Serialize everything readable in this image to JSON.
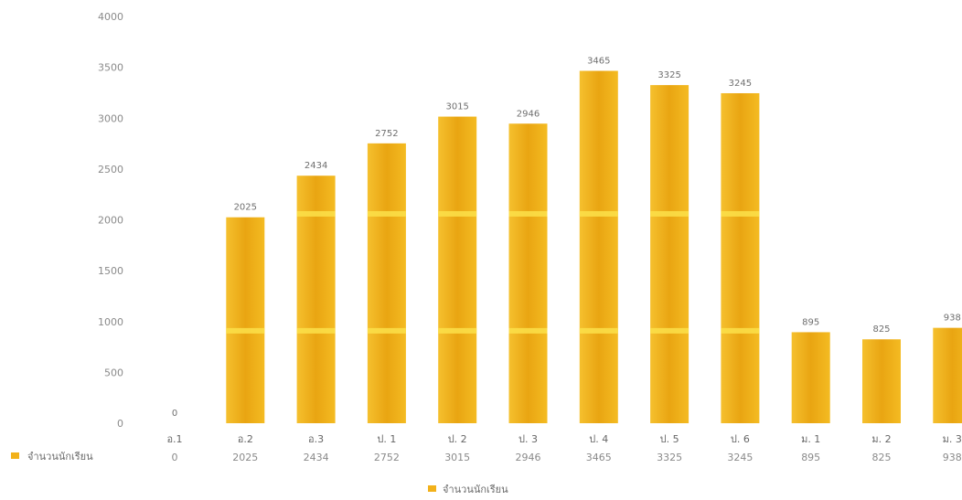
{
  "chart_data": {
    "type": "bar",
    "title": "",
    "categories": [
      "อ.1",
      "อ.2",
      "อ.3",
      "ป. 1",
      "ป. 2",
      "ป. 3",
      "ป. 4",
      "ป. 5",
      "ป. 6",
      "ม. 1",
      "ม. 2",
      "ม. 3"
    ],
    "series": [
      {
        "name": "จำนวนนักเรียน",
        "values": [
          0,
          2025,
          2434,
          2752,
          3015,
          2946,
          3465,
          3325,
          3245,
          895,
          825,
          938
        ],
        "color": "#f2b11a"
      }
    ],
    "data_labels": [
      "0",
      "2025",
      "2434",
      "2752",
      "3015",
      "2946",
      "3465",
      "3325",
      "3245",
      "895",
      "825",
      "938"
    ],
    "table_labels": [
      "0",
      "2025",
      "2434",
      "2752",
      "3015",
      "2946",
      "3465",
      "3325",
      "3245",
      "895",
      "825",
      "938"
    ],
    "yticks": [
      "0",
      "500",
      "1000",
      "1500",
      "2000",
      "2500",
      "3000",
      "3500",
      "4000"
    ],
    "ylim": [
      0,
      4000
    ],
    "xlabel": "",
    "ylabel": "",
    "grid": false,
    "legend": {
      "label": "จำนวนนักเรียน",
      "placement": "bottom-center"
    },
    "data_table": {
      "row_label": "จำนวนนักเรียน"
    }
  }
}
